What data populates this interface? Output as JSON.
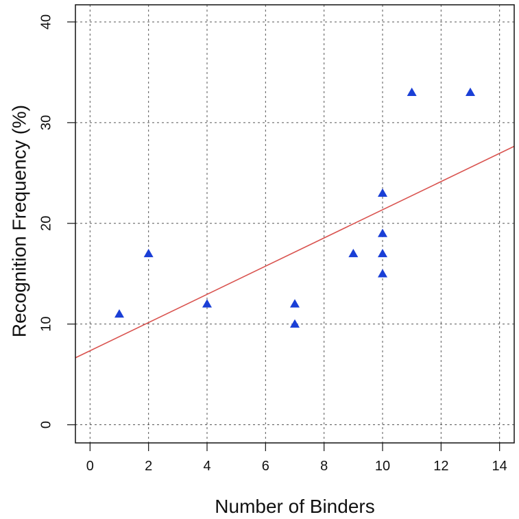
{
  "chart_data": {
    "type": "scatter",
    "title": "",
    "xlabel": "Number of Binders",
    "ylabel": "Recognition Frequency (%)",
    "xlim": [
      -0.5,
      14.5
    ],
    "ylim": [
      -1.8,
      41.7
    ],
    "x_ticks": [
      0,
      2,
      4,
      6,
      8,
      10,
      12,
      14
    ],
    "y_ticks": [
      0,
      10,
      20,
      30,
      40
    ],
    "x_tick_labels": [
      "0",
      "2",
      "4",
      "6",
      "8",
      "10",
      "12",
      "14"
    ],
    "y_tick_labels": [
      "0",
      "10",
      "20",
      "30",
      "40"
    ],
    "grid": true,
    "grid_style": "dotted",
    "series": [
      {
        "marker": "triangle",
        "color": "#1a3fd6",
        "points": [
          {
            "x": 1,
            "y": 11
          },
          {
            "x": 2,
            "y": 17
          },
          {
            "x": 4,
            "y": 12
          },
          {
            "x": 7,
            "y": 12
          },
          {
            "x": 7,
            "y": 10
          },
          {
            "x": 9,
            "y": 17
          },
          {
            "x": 10,
            "y": 23
          },
          {
            "x": 10,
            "y": 19
          },
          {
            "x": 10,
            "y": 17
          },
          {
            "x": 10,
            "y": 15
          },
          {
            "x": 11,
            "y": 33
          },
          {
            "x": 13,
            "y": 33
          }
        ]
      }
    ],
    "trend_line": {
      "color": "#d9534f",
      "intercept": 7.35,
      "slope": 1.4
    }
  }
}
